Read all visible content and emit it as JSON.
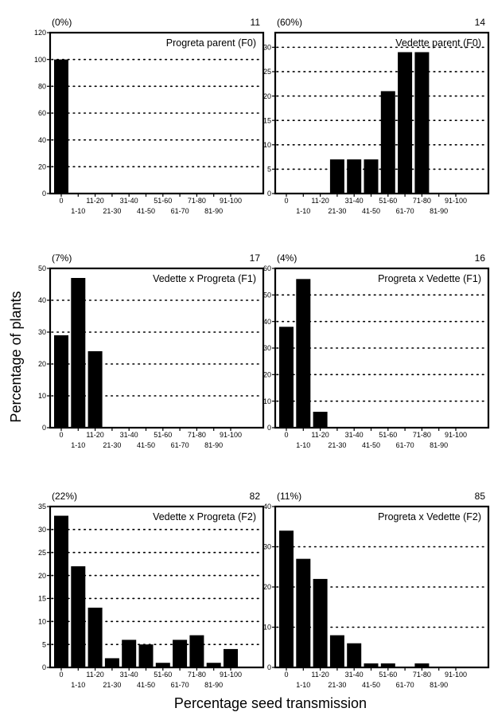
{
  "figure": {
    "y_axis_title": "Percentage of plants",
    "x_axis_title": "Percentage seed transmission"
  },
  "chart_data": [
    {
      "type": "bar",
      "title": "Progreta parent (F0)",
      "percent_label": "(0%)",
      "n_label": "11",
      "ylim": [
        0,
        120
      ],
      "yticks": [
        0,
        20,
        40,
        60,
        80,
        100,
        120
      ],
      "categories": [
        "0",
        "1-10",
        "11-20",
        "21-30",
        "31-40",
        "41-50",
        "51-60",
        "61-70",
        "71-80",
        "81-90",
        "91-100"
      ],
      "values": [
        100,
        0,
        0,
        0,
        0,
        0,
        0,
        0,
        0,
        0,
        0
      ],
      "gridlines": [
        20,
        40,
        60,
        80,
        100
      ],
      "grid": "dotted horizontal"
    },
    {
      "type": "bar",
      "title": "Vedette parent (F0)",
      "percent_label": "(60%)",
      "n_label": "14",
      "ylim": [
        0,
        33
      ],
      "yticks": [
        0,
        5,
        10,
        15,
        20,
        25,
        30
      ],
      "categories": [
        "0",
        "1-10",
        "11-20",
        "21-30",
        "31-40",
        "41-50",
        "51-60",
        "61-70",
        "71-80",
        "81-90",
        "91-100"
      ],
      "values": [
        0,
        0,
        0,
        7,
        7,
        7,
        21,
        29,
        29,
        0,
        0
      ],
      "gridlines": [
        5,
        10,
        15,
        20,
        25,
        30
      ],
      "grid": "dotted horizontal"
    },
    {
      "type": "bar",
      "title": "Vedette x Progreta (F1)",
      "percent_label": "(7%)",
      "n_label": "17",
      "ylim": [
        0,
        50
      ],
      "yticks": [
        0,
        10,
        20,
        30,
        40,
        50
      ],
      "categories": [
        "0",
        "1-10",
        "11-20",
        "21-30",
        "31-40",
        "41-50",
        "51-60",
        "61-70",
        "71-80",
        "81-90",
        "91-100"
      ],
      "values": [
        29,
        47,
        24,
        0,
        0,
        0,
        0,
        0,
        0,
        0,
        0
      ],
      "gridlines": [
        10,
        20,
        30,
        40
      ],
      "grid": "dotted horizontal"
    },
    {
      "type": "bar",
      "title": "Progreta x Vedette (F1)",
      "percent_label": "(4%)",
      "n_label": "16",
      "ylim": [
        0,
        60
      ],
      "yticks": [
        0,
        10,
        20,
        30,
        40,
        50,
        60
      ],
      "categories": [
        "0",
        "1-10",
        "11-20",
        "21-30",
        "31-40",
        "41-50",
        "51-60",
        "61-70",
        "71-80",
        "81-90",
        "91-100"
      ],
      "values": [
        38,
        56,
        6,
        0,
        0,
        0,
        0,
        0,
        0,
        0,
        0
      ],
      "gridlines": [
        10,
        20,
        30,
        40,
        50
      ],
      "grid": "dotted horizontal"
    },
    {
      "type": "bar",
      "title": "Vedette x Progreta (F2)",
      "percent_label": "(22%)",
      "n_label": "82",
      "ylim": [
        0,
        35
      ],
      "yticks": [
        0,
        5,
        10,
        15,
        20,
        25,
        30,
        35
      ],
      "categories": [
        "0",
        "1-10",
        "11-20",
        "21-30",
        "31-40",
        "41-50",
        "51-60",
        "61-70",
        "71-80",
        "81-90",
        "91-100"
      ],
      "values": [
        33,
        22,
        13,
        2,
        6,
        5,
        1,
        6,
        7,
        1,
        4
      ],
      "gridlines": [
        5,
        10,
        15,
        20,
        25,
        30
      ],
      "grid": "dotted horizontal"
    },
    {
      "type": "bar",
      "title": "Progreta x Vedette (F2)",
      "percent_label": "(11%)",
      "n_label": "85",
      "ylim": [
        0,
        40
      ],
      "yticks": [
        0,
        10,
        20,
        30,
        40
      ],
      "categories": [
        "0",
        "1-10",
        "11-20",
        "21-30",
        "31-40",
        "41-50",
        "51-60",
        "61-70",
        "71-80",
        "81-90",
        "91-100"
      ],
      "values": [
        34,
        27,
        22,
        8,
        6,
        1,
        1,
        0,
        1,
        0,
        0
      ],
      "gridlines": [
        10,
        20,
        30
      ],
      "grid": "dotted horizontal"
    }
  ]
}
